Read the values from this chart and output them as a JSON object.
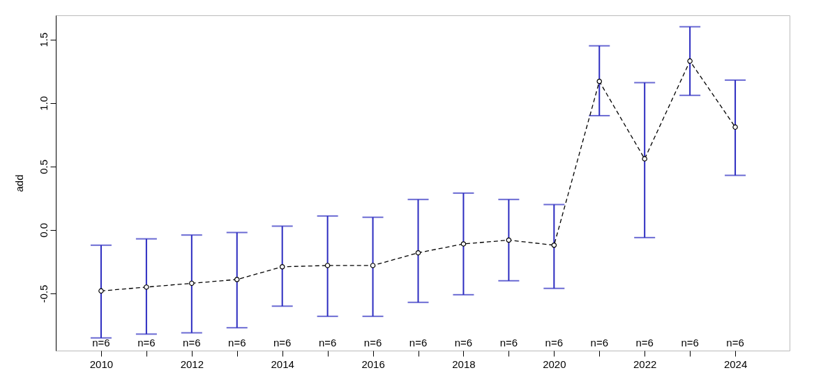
{
  "chart_data": {
    "type": "line",
    "ylabel": "add",
    "x": [
      2010,
      2011,
      2012,
      2013,
      2014,
      2015,
      2016,
      2017,
      2018,
      2019,
      2020,
      2021,
      2022,
      2023,
      2024
    ],
    "series": [
      {
        "color": "#000000",
        "values": [
          -0.48,
          -0.45,
          -0.42,
          -0.39,
          -0.29,
          -0.28,
          -0.28,
          -0.18,
          -0.11,
          -0.08,
          -0.12,
          1.17,
          0.56,
          1.33,
          0.81
        ],
        "errors": [
          [
            -0.85,
            -0.12
          ],
          [
            -0.82,
            -0.07
          ],
          [
            -0.81,
            -0.04
          ],
          [
            -0.77,
            -0.02
          ],
          [
            -0.6,
            0.03
          ],
          [
            -0.68,
            0.11
          ],
          [
            -0.68,
            0.1
          ],
          [
            -0.57,
            0.24
          ],
          [
            -0.51,
            0.29
          ],
          [
            -0.4,
            0.24
          ],
          [
            -0.46,
            0.2
          ],
          [
            0.9,
            1.45
          ],
          [
            -0.06,
            1.16
          ],
          [
            1.06,
            1.6
          ],
          [
            0.43,
            1.18
          ]
        ]
      }
    ],
    "marker": "circle",
    "line_style": "dashed",
    "grid": false,
    "xlim": [
      2009,
      2025.2
    ],
    "ylim": [
      -0.95,
      1.69
    ],
    "xticks": [
      2010,
      {
        "value": 2011,
        "label": null
      },
      2012,
      {
        "value": 2013,
        "label": null
      },
      2014,
      {
        "value": 2015,
        "label": null
      },
      2016,
      {
        "value": 2017,
        "label": null
      },
      2018,
      {
        "value": 2019,
        "label": null
      },
      2020,
      {
        "value": 2021,
        "label": null
      },
      2022,
      {
        "value": 2023,
        "label": null
      },
      2024
    ],
    "yticks": [
      {
        "value": -0.5,
        "label": "-0.5"
      },
      {
        "value": 0,
        "label": "0.0"
      },
      {
        "value": 0.5,
        "label": "0.5"
      },
      {
        "value": 1,
        "label": "1.0"
      },
      {
        "value": 1.5,
        "label": "1.5"
      }
    ],
    "annotations": [
      "n=6",
      "n=6",
      "n=6",
      "n=6",
      "n=6",
      "n=6",
      "n=6",
      "n=6",
      "n=6",
      "n=6",
      "n=6",
      "n=6",
      "n=6",
      "n=6",
      "n=6"
    ]
  }
}
